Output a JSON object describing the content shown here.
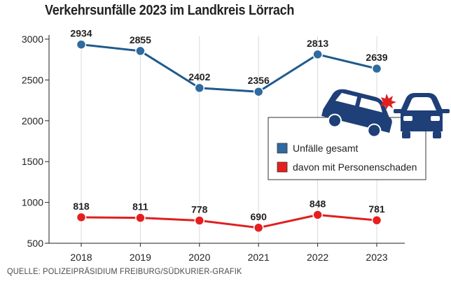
{
  "title": "Verkehrsunfälle 2023 im Landkreis Lörrach",
  "source": "QUELLE: POLIZEIPRÄSIDIUM FREIBURG/SÜDKURIER-GRAFIK",
  "colors": {
    "series_total": "#1f5a8c",
    "series_injury": "#e01f1f",
    "marker_total": "#2f6aa0",
    "marker_injury": "#e51f1f",
    "grid": "#d8d8d8",
    "axis": "#222222",
    "car_blue": "#1e3f78",
    "crash_red": "#e02020"
  },
  "icons": [
    "car-crash-icon"
  ],
  "chart_data": {
    "type": "line",
    "title": "Verkehrsunfälle 2023 im Landkreis Lörrach",
    "categories": [
      "2018",
      "2019",
      "2020",
      "2021",
      "2022",
      "2023"
    ],
    "series": [
      {
        "name": "Unfälle gesamt",
        "values": [
          2934,
          2855,
          2402,
          2356,
          2813,
          2639
        ]
      },
      {
        "name": "davon mit Personenschaden",
        "values": [
          818,
          811,
          778,
          690,
          848,
          781
        ]
      }
    ],
    "yticks": [
      500,
      1000,
      1500,
      2000,
      2500,
      3000
    ],
    "ylim": [
      500,
      3000
    ],
    "xlabel": "",
    "ylabel": "",
    "grid": "vertical",
    "legend": "right"
  }
}
